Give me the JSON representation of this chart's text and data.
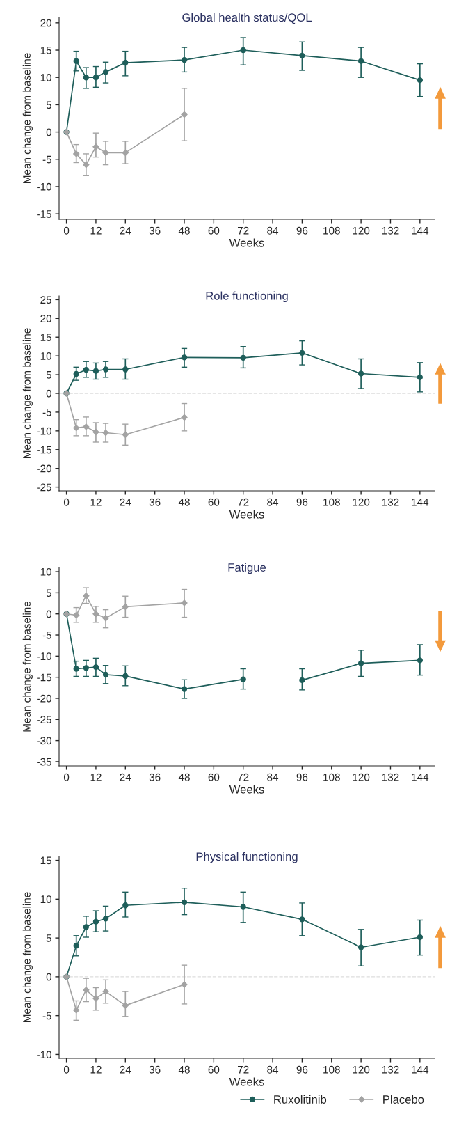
{
  "chart_data": [
    {
      "type": "line",
      "title": "Global health status/QOL",
      "xlabel": "Weeks",
      "ylabel": "Mean change from baseline",
      "ylim": [
        -16,
        21
      ],
      "yticks": [
        -15,
        -10,
        -5,
        0,
        5,
        10,
        15,
        20
      ],
      "xlim": [
        -3,
        150
      ],
      "xticks": [
        0,
        12,
        24,
        36,
        48,
        60,
        72,
        84,
        96,
        108,
        120,
        132,
        144
      ],
      "grid": false,
      "series": [
        {
          "color": "#1e5e5a",
          "marker": "circle",
          "x": [
            0,
            4,
            8,
            12,
            16,
            24,
            48,
            72,
            96,
            120,
            144
          ],
          "values": [
            0,
            13,
            10,
            10,
            11,
            12.7,
            13.2,
            15,
            14,
            13,
            9.5
          ],
          "errors": [
            null,
            [
              11.2,
              14.8
            ],
            [
              8,
              11.8
            ],
            [
              8.2,
              12
            ],
            [
              9,
              12.8
            ],
            [
              10.3,
              14.8
            ],
            [
              11,
              15.5
            ],
            [
              12.3,
              17.3
            ],
            [
              11.3,
              16.5
            ],
            [
              10,
              15.5
            ],
            [
              6.5,
              12.5
            ]
          ]
        },
        {
          "color": "#a3a3a3",
          "marker": "diamond",
          "x": [
            0,
            4,
            8,
            12,
            16,
            24,
            48
          ],
          "values": [
            0,
            -4,
            -6,
            -2.7,
            -3.8,
            -3.8,
            3.2
          ],
          "errors": [
            null,
            [
              -5.6,
              -2.3
            ],
            [
              -8,
              -4
            ],
            [
              -4.6,
              -0.2
            ],
            [
              -6,
              -1.7
            ],
            [
              -5.8,
              -1.7
            ],
            [
              -1.6,
              8
            ]
          ]
        }
      ]
    },
    {
      "type": "line",
      "title": "Role functioning",
      "xlabel": "Weeks",
      "ylabel": "Mean change from baseline",
      "ylim": [
        -26,
        26
      ],
      "yticks": [
        -25,
        -20,
        -15,
        -10,
        -5,
        0,
        5,
        10,
        15,
        20,
        25
      ],
      "xlim": [
        -3,
        150
      ],
      "xticks": [
        0,
        12,
        24,
        36,
        48,
        60,
        72,
        84,
        96,
        108,
        120,
        132,
        144
      ],
      "grid": false,
      "ref_lines": [
        {
          "axis": "y",
          "value": 0,
          "color": "#dddddd",
          "line_style": "dashed"
        }
      ],
      "series": [
        {
          "color": "#1e5e5a",
          "marker": "circle",
          "x": [
            0,
            4,
            8,
            12,
            16,
            24,
            48,
            72,
            96,
            120,
            144
          ],
          "values": [
            0,
            5.2,
            6.3,
            6,
            6.4,
            6.4,
            9.6,
            9.5,
            10.8,
            5.3,
            4.3
          ],
          "errors": [
            null,
            [
              3.5,
              7
            ],
            [
              4.3,
              8.5
            ],
            [
              3.8,
              8.1
            ],
            [
              4.3,
              8.5
            ],
            [
              3.8,
              9.2
            ],
            [
              7,
              12
            ],
            [
              6.8,
              12.5
            ],
            [
              7.6,
              14
            ],
            [
              1.3,
              9.2
            ],
            [
              0.4,
              8.2
            ]
          ]
        },
        {
          "color": "#a3a3a3",
          "marker": "diamond",
          "x": [
            0,
            4,
            8,
            12,
            16,
            24,
            48
          ],
          "values": [
            0,
            -9.2,
            -8.9,
            -10.3,
            -10.5,
            -11,
            -6.4
          ],
          "errors": [
            null,
            [
              -11.3,
              -7
            ],
            [
              -11.3,
              -6.3
            ],
            [
              -13,
              -7.8
            ],
            [
              -13,
              -8
            ],
            [
              -13.8,
              -8.2
            ],
            [
              -10,
              -2.7
            ]
          ]
        }
      ]
    },
    {
      "type": "line",
      "title": "Fatigue",
      "xlabel": "Weeks",
      "ylabel": "Mean change from baseline",
      "ylim": [
        -36,
        11
      ],
      "yticks": [
        -35,
        -30,
        -25,
        -20,
        -15,
        -10,
        -5,
        0,
        5,
        10
      ],
      "xlim": [
        -3,
        150
      ],
      "xticks": [
        0,
        12,
        24,
        36,
        48,
        60,
        72,
        84,
        96,
        108,
        120,
        132,
        144
      ],
      "grid": false,
      "series": [
        {
          "color": "#1e5e5a",
          "marker": "circle",
          "x": [
            0,
            4,
            8,
            12,
            16,
            24,
            48,
            72,
            84,
            96,
            120,
            144
          ],
          "values": [
            0,
            -13,
            -12.8,
            -12.6,
            -14.4,
            -14.7,
            -17.8,
            -15.5,
            null,
            -15.7,
            -11.7,
            -11
          ],
          "errors": [
            null,
            [
              -14.8,
              -11.2
            ],
            [
              -14.8,
              -11
            ],
            [
              -14.8,
              -10.5
            ],
            [
              -16.5,
              -12.2
            ],
            [
              -17,
              -12.3
            ],
            [
              -20,
              -15.6
            ],
            [
              -17.8,
              -13
            ],
            null,
            [
              -18,
              -13
            ],
            [
              -14.8,
              -8.6
            ],
            [
              -14.5,
              -7.3
            ]
          ]
        },
        {
          "color": "#a3a3a3",
          "marker": "diamond",
          "x": [
            0,
            4,
            8,
            12,
            16,
            24,
            48
          ],
          "values": [
            0,
            -0.3,
            4.3,
            0,
            -1,
            1.7,
            2.6
          ],
          "errors": [
            null,
            [
              -2,
              1.5
            ],
            [
              2.5,
              6.2
            ],
            [
              -2,
              1.8
            ],
            [
              -3.3,
              1
            ],
            [
              -0.8,
              4.2
            ],
            [
              -0.8,
              5.8
            ]
          ]
        }
      ]
    },
    {
      "type": "line",
      "title": "Physical functioning",
      "xlabel": "Weeks",
      "ylabel": "Mean change from baseline",
      "ylim": [
        -10.5,
        15.5
      ],
      "yticks": [
        -10,
        -5,
        0,
        5,
        10,
        15
      ],
      "xlim": [
        -3,
        150
      ],
      "xticks": [
        0,
        12,
        24,
        36,
        48,
        60,
        72,
        84,
        96,
        108,
        120,
        132,
        144
      ],
      "grid": false,
      "legend": "bottom right",
      "ref_lines": [
        {
          "axis": "y",
          "value": 0,
          "color": "#dddddd",
          "line_style": "dashed"
        }
      ],
      "series": [
        {
          "name": "Ruxolitinib",
          "color": "#1e5e5a",
          "marker": "circle",
          "x": [
            0,
            4,
            8,
            12,
            16,
            24,
            48,
            72,
            96,
            120,
            144
          ],
          "values": [
            0,
            4,
            6.4,
            7.1,
            7.5,
            9.2,
            9.6,
            9,
            7.4,
            3.8,
            5.1
          ],
          "errors": [
            null,
            [
              2.7,
              5.3
            ],
            [
              5.1,
              7.8
            ],
            [
              5.8,
              8.5
            ],
            [
              5.9,
              9.1
            ],
            [
              7.7,
              10.9
            ],
            [
              8,
              11.4
            ],
            [
              7,
              10.9
            ],
            [
              5.3,
              9.5
            ],
            [
              1.4,
              6.1
            ],
            [
              2.8,
              7.3
            ]
          ]
        },
        {
          "name": "Placebo",
          "color": "#a3a3a3",
          "marker": "diamond",
          "x": [
            0,
            4,
            8,
            12,
            16,
            24,
            48
          ],
          "values": [
            0,
            -4.3,
            -1.7,
            -2.8,
            -1.9,
            -3.7,
            -1
          ],
          "errors": [
            null,
            [
              -5.6,
              -3.1
            ],
            [
              -3.2,
              -0.2
            ],
            [
              -4.3,
              -1.4
            ],
            [
              -3.4,
              -0.4
            ],
            [
              -5.1,
              -1.9
            ],
            [
              -3.5,
              1.5
            ]
          ]
        }
      ]
    }
  ]
}
